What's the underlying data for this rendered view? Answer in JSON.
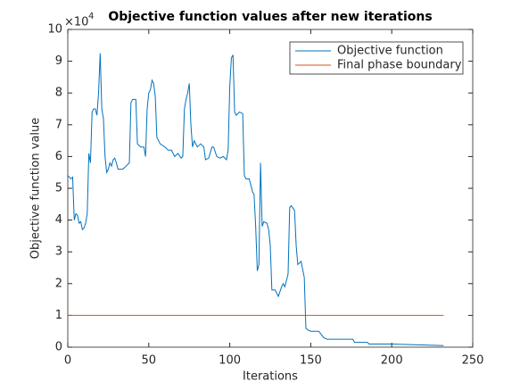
{
  "chart_data": {
    "type": "line",
    "title": "Objective function values after new iterations",
    "x_label": "Iterations",
    "y_label": "Objective function value",
    "y_multiplier_base": "×10",
    "y_multiplier_exp": "4",
    "xlim": [
      0,
      250
    ],
    "xticks": [
      0,
      50,
      100,
      150,
      200,
      250
    ],
    "ylim": [
      0,
      10
    ],
    "yticks": [
      0,
      1,
      2,
      3,
      4,
      5,
      6,
      7,
      8,
      9,
      10
    ],
    "legend": "top-right",
    "series": [
      {
        "name": "Objective function",
        "color": "#0072bd",
        "x": [
          0,
          2,
          3,
          4,
          5,
          6,
          7,
          8,
          9,
          10,
          11,
          12,
          13,
          14,
          15,
          16,
          17,
          18,
          19,
          20,
          21,
          22,
          23,
          24,
          25,
          26,
          27,
          28,
          29,
          30,
          31,
          34,
          36,
          38,
          39,
          40,
          42,
          43,
          45,
          47,
          48,
          49,
          50,
          51,
          52,
          53,
          54,
          55,
          57,
          60,
          62,
          64,
          66,
          68,
          70,
          71,
          72,
          73,
          74,
          75,
          76,
          77,
          78,
          80,
          82,
          84,
          85,
          87,
          89,
          90,
          92,
          94,
          96,
          98,
          99,
          100,
          101,
          102,
          103,
          104,
          106,
          108,
          109,
          110,
          112,
          114,
          115,
          116,
          117,
          118,
          119,
          120,
          121,
          123,
          124,
          125,
          126,
          128,
          130,
          132,
          133,
          134,
          136,
          137,
          138,
          140,
          141,
          142,
          144,
          146,
          147,
          148,
          150,
          155,
          158,
          160,
          170,
          176,
          177,
          185,
          186,
          200,
          232
        ],
        "values": [
          5.4,
          5.3,
          5.35,
          4.0,
          4.2,
          4.15,
          3.9,
          3.95,
          3.7,
          3.75,
          3.9,
          4.2,
          6.1,
          5.8,
          7.4,
          7.5,
          7.5,
          7.3,
          8.0,
          9.25,
          7.5,
          7.2,
          6.0,
          5.5,
          5.6,
          5.8,
          5.7,
          5.9,
          5.95,
          5.8,
          5.6,
          5.6,
          5.7,
          5.8,
          7.7,
          7.8,
          7.8,
          6.4,
          6.3,
          6.3,
          6.0,
          7.5,
          8.0,
          8.1,
          8.4,
          8.3,
          7.9,
          6.6,
          6.4,
          6.3,
          6.2,
          6.2,
          6.0,
          6.1,
          5.95,
          6.0,
          7.5,
          7.8,
          8.0,
          8.3,
          7.0,
          6.3,
          6.5,
          6.3,
          6.4,
          6.3,
          5.9,
          5.95,
          6.3,
          6.3,
          6.0,
          5.95,
          6.0,
          5.9,
          6.2,
          8.2,
          9.1,
          9.2,
          7.4,
          7.3,
          7.4,
          7.35,
          5.4,
          5.3,
          5.3,
          4.9,
          4.8,
          3.8,
          2.4,
          2.6,
          5.8,
          3.8,
          3.95,
          3.9,
          3.7,
          3.2,
          1.8,
          1.8,
          1.6,
          1.9,
          2.0,
          1.9,
          2.3,
          4.4,
          4.45,
          4.3,
          3.2,
          2.6,
          2.7,
          2.2,
          0.6,
          0.55,
          0.5,
          0.5,
          0.3,
          0.25,
          0.25,
          0.25,
          0.15,
          0.15,
          0.1,
          0.1,
          0.05
        ]
      },
      {
        "name": "Final phase boundary",
        "color": "#d95319",
        "x": [
          0,
          232
        ],
        "values": [
          1,
          1
        ]
      }
    ]
  }
}
